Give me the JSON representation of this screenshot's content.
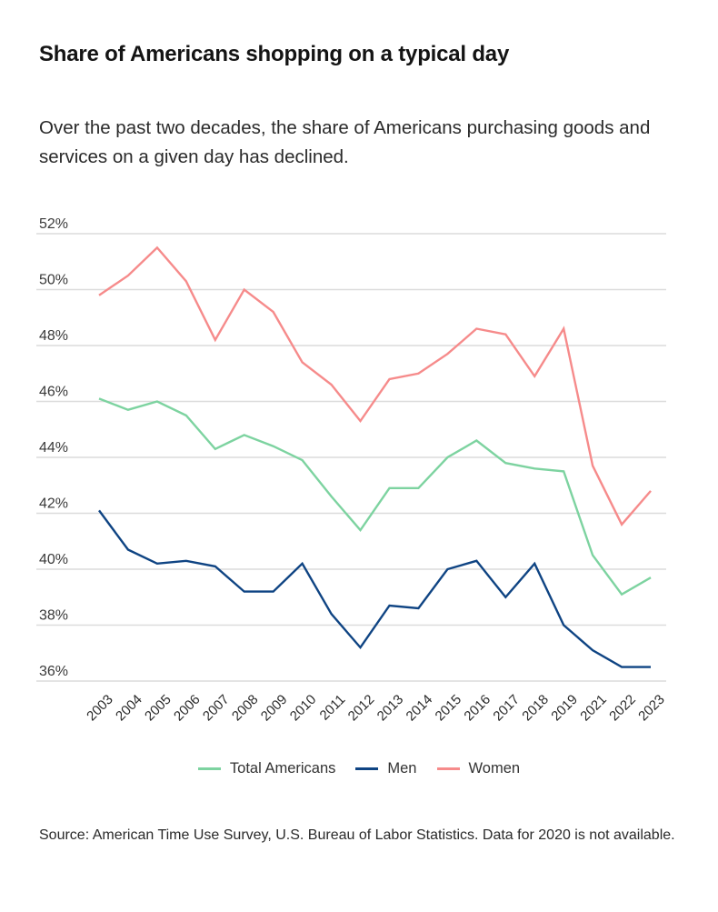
{
  "chart_data": {
    "type": "line",
    "title": "Share of Americans shopping on a typical day",
    "subtitle": "Over the past two decades, the share of Americans purchasing goods and services on a given day has declined.",
    "xlabel": "",
    "ylabel": "",
    "x": [
      "2003",
      "2004",
      "2005",
      "2006",
      "2007",
      "2008",
      "2009",
      "2010",
      "2011",
      "2012",
      "2013",
      "2014",
      "2015",
      "2016",
      "2017",
      "2018",
      "2019",
      "2021",
      "2022",
      "2023"
    ],
    "ylim": [
      36,
      52
    ],
    "yticks": [
      36,
      38,
      40,
      42,
      44,
      46,
      48,
      50,
      52
    ],
    "ytick_labels": [
      "36%",
      "38%",
      "40%",
      "42%",
      "44%",
      "46%",
      "48%",
      "50%",
      "52%"
    ],
    "grid": true,
    "legend_position": "bottom-center",
    "series": [
      {
        "name": "Total Americans",
        "color": "#7dd3a0",
        "values": [
          46.1,
          45.7,
          46.0,
          45.5,
          44.3,
          44.8,
          44.4,
          43.9,
          42.6,
          41.4,
          42.9,
          42.9,
          44.0,
          44.6,
          43.8,
          43.6,
          43.5,
          40.5,
          39.1,
          39.7
        ]
      },
      {
        "name": "Men",
        "color": "#0f4483",
        "values": [
          42.1,
          40.7,
          40.2,
          40.3,
          40.1,
          39.2,
          39.2,
          40.2,
          38.4,
          37.2,
          38.7,
          38.6,
          40.0,
          40.3,
          39.0,
          40.2,
          38.0,
          37.1,
          36.5,
          36.5
        ]
      },
      {
        "name": "Women",
        "color": "#f68b8b",
        "values": [
          49.8,
          50.5,
          51.5,
          50.3,
          48.2,
          50.0,
          49.2,
          47.4,
          46.6,
          45.3,
          46.8,
          47.0,
          47.7,
          48.6,
          48.4,
          46.9,
          48.6,
          43.7,
          41.6,
          42.8
        ]
      }
    ],
    "source": "Source: American Time Use Survey, U.S. Bureau of Labor Statistics. Data for 2020 is not available."
  },
  "colors": {
    "grid": "#dcdcdc",
    "text": "#2a2a2a"
  }
}
